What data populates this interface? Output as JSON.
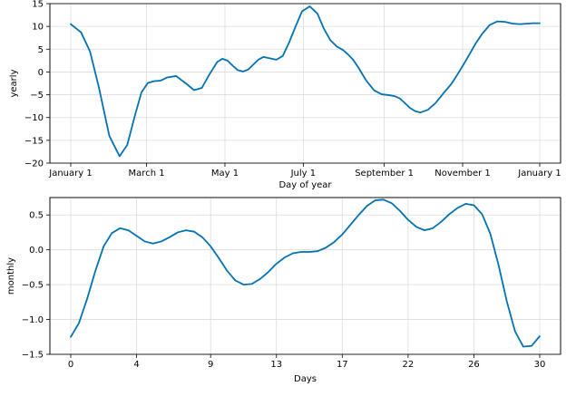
{
  "chart_data": [
    {
      "type": "line",
      "xlabel": "Day of year",
      "ylabel": "yearly",
      "x_ticks": [
        "January 1",
        "March 1",
        "May 1",
        "July 1",
        "September 1",
        "November 1",
        "January 1"
      ],
      "x_tick_days": [
        0,
        59,
        120,
        181,
        244,
        305,
        365
      ],
      "xlim": [
        0,
        365
      ],
      "ylim": [
        -20,
        15
      ],
      "y_ticks": [
        15,
        10,
        5,
        0,
        -5,
        -10,
        -15,
        -20
      ],
      "grid": true,
      "line_color": "#0072B2",
      "series": [
        {
          "x": [
            0,
            8,
            15,
            22,
            30,
            38,
            44,
            50,
            55,
            60,
            65,
            70,
            75,
            82,
            90,
            96,
            102,
            108,
            114,
            118,
            122,
            126,
            130,
            134,
            138,
            142,
            146,
            150,
            155,
            160,
            165,
            170,
            175,
            180,
            186,
            192,
            197,
            202,
            207,
            212,
            216,
            220,
            224,
            230,
            236,
            242,
            248,
            252,
            256,
            260,
            264,
            268,
            272,
            278,
            284,
            290,
            296,
            300,
            305,
            310,
            315,
            320,
            326,
            332,
            338,
            344,
            350,
            355,
            360,
            365
          ],
          "values": [
            10.5,
            8.7,
            4.5,
            -3.5,
            -14.0,
            -18.5,
            -16.0,
            -9.5,
            -4.5,
            -2.4,
            -2.0,
            -1.9,
            -1.2,
            -0.9,
            -2.6,
            -4.0,
            -3.5,
            -0.5,
            2.2,
            2.9,
            2.5,
            1.4,
            0.4,
            0.1,
            0.5,
            1.6,
            2.7,
            3.3,
            3.0,
            2.7,
            3.5,
            6.5,
            10.0,
            13.3,
            14.4,
            12.8,
            9.5,
            7.0,
            5.6,
            4.8,
            3.8,
            2.6,
            0.9,
            -1.9,
            -4.0,
            -4.9,
            -5.1,
            -5.3,
            -5.8,
            -6.8,
            -7.9,
            -8.6,
            -8.9,
            -8.3,
            -6.8,
            -4.7,
            -2.7,
            -1.0,
            1.3,
            3.7,
            6.2,
            8.3,
            10.3,
            11.1,
            11.0,
            10.6,
            10.5,
            10.6,
            10.7,
            10.7
          ]
        }
      ]
    },
    {
      "type": "line",
      "xlabel": "Days",
      "ylabel": "monthly",
      "x_ticks": [
        "0",
        "4",
        "9",
        "13",
        "17",
        "22",
        "26",
        "30"
      ],
      "x_tick_values": [
        0,
        4,
        8.5,
        12.5,
        16.5,
        20.5,
        24.5,
        28.5
      ],
      "xlim": [
        0,
        28.5
      ],
      "ylim": [
        -1.5,
        0.75
      ],
      "y_ticks": [
        0.5,
        0.0,
        -0.5,
        -1.0,
        -1.5
      ],
      "y_tick_labels": [
        "0.5",
        "0.0",
        "−0.5",
        "−1.0",
        "−1.5"
      ],
      "grid": true,
      "line_color": "#0072B2",
      "series": [
        {
          "x": [
            0,
            0.5,
            1.0,
            1.5,
            2.0,
            2.5,
            3.0,
            3.5,
            4.0,
            4.5,
            5.0,
            5.5,
            6.0,
            6.5,
            7.0,
            7.5,
            8.0,
            8.5,
            9.0,
            9.5,
            10.0,
            10.5,
            11.0,
            11.5,
            12.0,
            12.5,
            13.0,
            13.5,
            14.0,
            14.5,
            15.0,
            15.5,
            16.0,
            16.5,
            17.0,
            17.5,
            18.0,
            18.5,
            19.0,
            19.5,
            20.0,
            20.5,
            21.0,
            21.5,
            22.0,
            22.5,
            23.0,
            23.5,
            24.0,
            24.5,
            25.0,
            25.5,
            26.0,
            26.5,
            27.0,
            27.5,
            28.0,
            28.5
          ],
          "values": [
            -1.25,
            -1.05,
            -0.7,
            -0.3,
            0.05,
            0.24,
            0.31,
            0.28,
            0.2,
            0.12,
            0.09,
            0.12,
            0.18,
            0.25,
            0.28,
            0.26,
            0.18,
            0.05,
            -0.12,
            -0.3,
            -0.44,
            -0.5,
            -0.49,
            -0.42,
            -0.32,
            -0.2,
            -0.11,
            -0.05,
            -0.03,
            -0.03,
            -0.02,
            0.03,
            0.11,
            0.22,
            0.36,
            0.5,
            0.63,
            0.71,
            0.72,
            0.67,
            0.56,
            0.43,
            0.33,
            0.28,
            0.31,
            0.4,
            0.51,
            0.6,
            0.66,
            0.64,
            0.51,
            0.23,
            -0.22,
            -0.74,
            -1.17,
            -1.39,
            -1.38,
            -1.24
          ]
        }
      ]
    }
  ]
}
